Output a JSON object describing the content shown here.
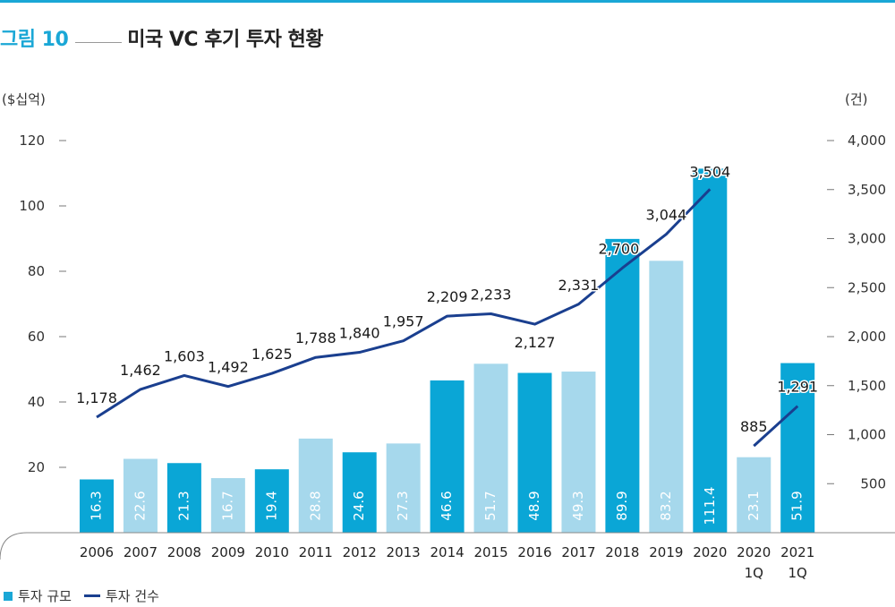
{
  "header": {
    "figure_label": "그림 10",
    "title": "미국 VC 후기 투자 현황"
  },
  "units": {
    "left": "($십억)",
    "right": "(건)"
  },
  "legend": {
    "bar_label": "투자 규모",
    "line_label": "투자 건수"
  },
  "colors": {
    "accent": "#1aa7d6",
    "bar_dark": "#0aa6d6",
    "bar_light": "#a6d8ec",
    "line": "#1a3f8f"
  },
  "chart_data": {
    "type": "bar",
    "title": "미국 VC 후기 투자 현황",
    "categories": [
      "2006",
      "2007",
      "2008",
      "2009",
      "2010",
      "2011",
      "2012",
      "2013",
      "2014",
      "2015",
      "2016",
      "2017",
      "2018",
      "2019",
      "2020",
      "2020\n1Q",
      "2021\n1Q"
    ],
    "series": [
      {
        "name": "투자 규모",
        "axis": "left",
        "values": [
          16.3,
          22.6,
          21.3,
          16.7,
          19.4,
          28.8,
          24.6,
          27.3,
          46.6,
          51.7,
          48.9,
          49.3,
          89.9,
          83.2,
          111.4,
          23.1,
          51.9
        ],
        "labels": [
          "16.3",
          "22.6",
          "21.3",
          "16.7",
          "19.4",
          "28.8",
          "24.6",
          "27.3",
          "46.6",
          "51.7",
          "48.9",
          "49.3",
          "89.9",
          "83.2",
          "111.4",
          "23.1",
          "51.9"
        ],
        "shade": [
          "dark",
          "light",
          "dark",
          "light",
          "dark",
          "light",
          "dark",
          "light",
          "dark",
          "light",
          "dark",
          "light",
          "dark",
          "light",
          "dark",
          "light",
          "dark"
        ]
      },
      {
        "name": "투자 건수",
        "axis": "right",
        "type": "line",
        "values": [
          1178,
          1462,
          1603,
          1492,
          1625,
          1788,
          1840,
          1957,
          2209,
          2233,
          2127,
          2331,
          2700,
          3044,
          3504,
          885,
          1291
        ],
        "labels": [
          "1,178",
          "1,462",
          "1,603",
          "1,492",
          "1,625",
          "1,788",
          "1,840",
          "1,957",
          "2,209",
          "2,233",
          "2,127",
          "2,331",
          "2,700",
          "3,044",
          "3,504",
          "885",
          "1,291"
        ],
        "segments": [
          [
            0,
            14
          ],
          [
            15,
            16
          ]
        ]
      }
    ],
    "y_left": {
      "ticks": [
        20,
        40,
        60,
        80,
        100,
        120
      ]
    },
    "y_right": {
      "ticks": [
        500,
        1000,
        1500,
        2000,
        2500,
        3000,
        3500,
        4000
      ],
      "tick_labels": [
        "500",
        "1,000",
        "1,500",
        "2,000",
        "2,500",
        "3,000",
        "3,500",
        "4,000"
      ]
    },
    "grid": false,
    "legend_position": "bottom-left"
  }
}
